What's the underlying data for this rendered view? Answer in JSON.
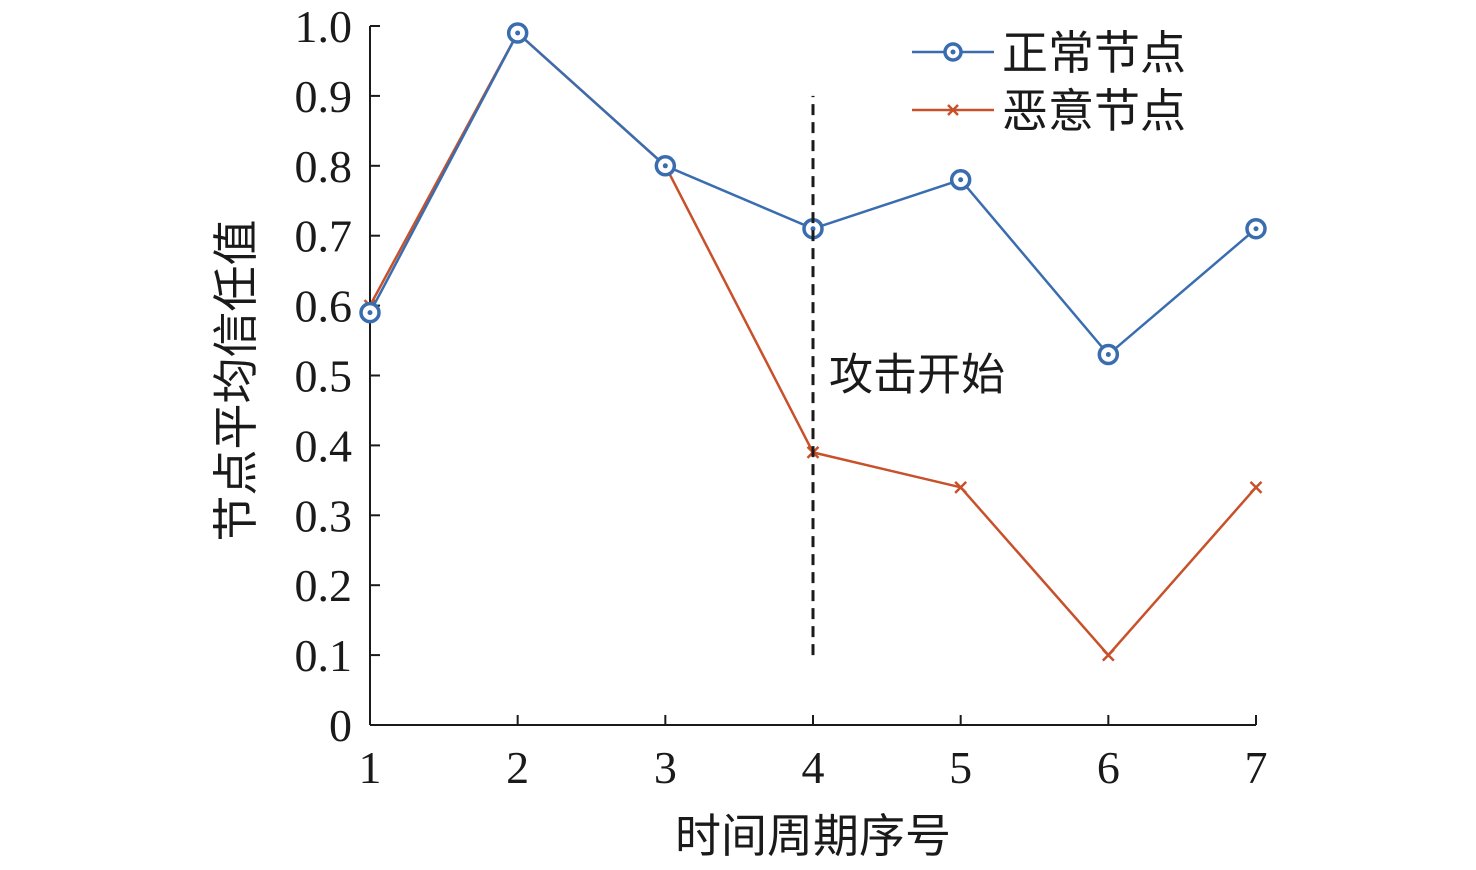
{
  "chart_data": {
    "type": "line",
    "xlabel": "时间周期序号",
    "ylabel": "节点平均信任值",
    "x": [
      1,
      2,
      3,
      4,
      5,
      6,
      7
    ],
    "xlim": [
      1,
      7
    ],
    "ylim": [
      0,
      1.0
    ],
    "xticks": [
      "1",
      "2",
      "3",
      "4",
      "5",
      "6",
      "7"
    ],
    "yticks": [
      "0",
      "0.1",
      "0.2",
      "0.3",
      "0.4",
      "0.5",
      "0.6",
      "0.7",
      "0.8",
      "0.9",
      "1.0"
    ],
    "grid": false,
    "legend_position": "top-right",
    "series": [
      {
        "name": "正常节点",
        "values": [
          0.59,
          0.99,
          0.8,
          0.71,
          0.78,
          0.53,
          0.71
        ],
        "color": "#3a6db0",
        "marker": "circle"
      },
      {
        "name": "恶意节点",
        "values": [
          0.6,
          0.99,
          0.8,
          0.39,
          0.34,
          0.1,
          0.34
        ],
        "color": "#c8502a",
        "marker": "x"
      }
    ],
    "annotation": {
      "text": "攻击开始",
      "x": 4,
      "line_y_range": [
        0.1,
        0.9
      ]
    }
  }
}
